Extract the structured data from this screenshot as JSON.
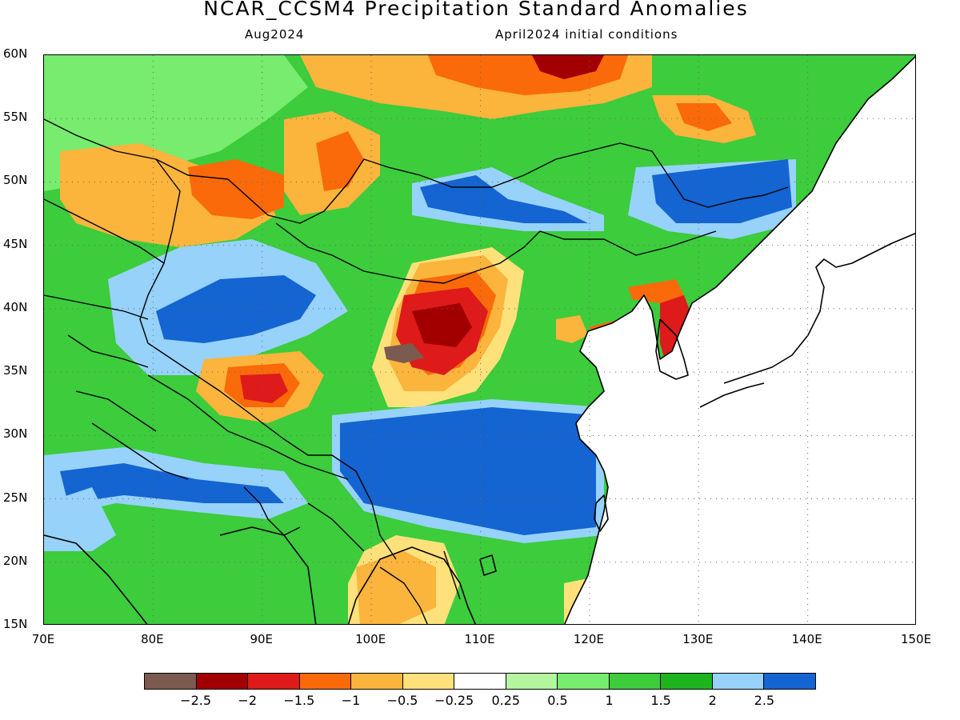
{
  "title": "NCAR_CCSM4 Precipitation Standard Anomalies",
  "subtitle_left": "Aug2024",
  "subtitle_right": "April2024 initial conditions",
  "lat_labels": [
    "60N",
    "55N",
    "50N",
    "45N",
    "40N",
    "35N",
    "30N",
    "25N",
    "20N",
    "15N"
  ],
  "lon_labels": [
    "70E",
    "80E",
    "90E",
    "100E",
    "110E",
    "120E",
    "130E",
    "140E",
    "150E"
  ],
  "colorbar": {
    "colors": [
      "#7b5a4f",
      "#a20000",
      "#de1a1a",
      "#fa6a0a",
      "#fbb43c",
      "#fee17a",
      "#ffffff",
      "#b4f5a0",
      "#77ec6e",
      "#3ccc3c",
      "#1eb41e",
      "#96d2fa",
      "#1464d2"
    ],
    "labels": [
      "−2.5",
      "−2",
      "−1.5",
      "−1",
      "−0.5",
      "−0.25",
      "0.25",
      "0.5",
      "1",
      "1.5",
      "2",
      "2.5"
    ]
  },
  "palette": {
    "brown": "#7b5a4f",
    "darkred": "#a20000",
    "red": "#de1a1a",
    "orange": "#fa6a0a",
    "lightorange": "#fbb43c",
    "yellow": "#fee17a",
    "white": "#ffffff",
    "palegreen": "#b4f5a0",
    "lightgreen": "#77ec6e",
    "green": "#3ccc3c",
    "darkgreen": "#1eb41e",
    "lightblue": "#96d2fa",
    "blue": "#1464d2"
  }
}
